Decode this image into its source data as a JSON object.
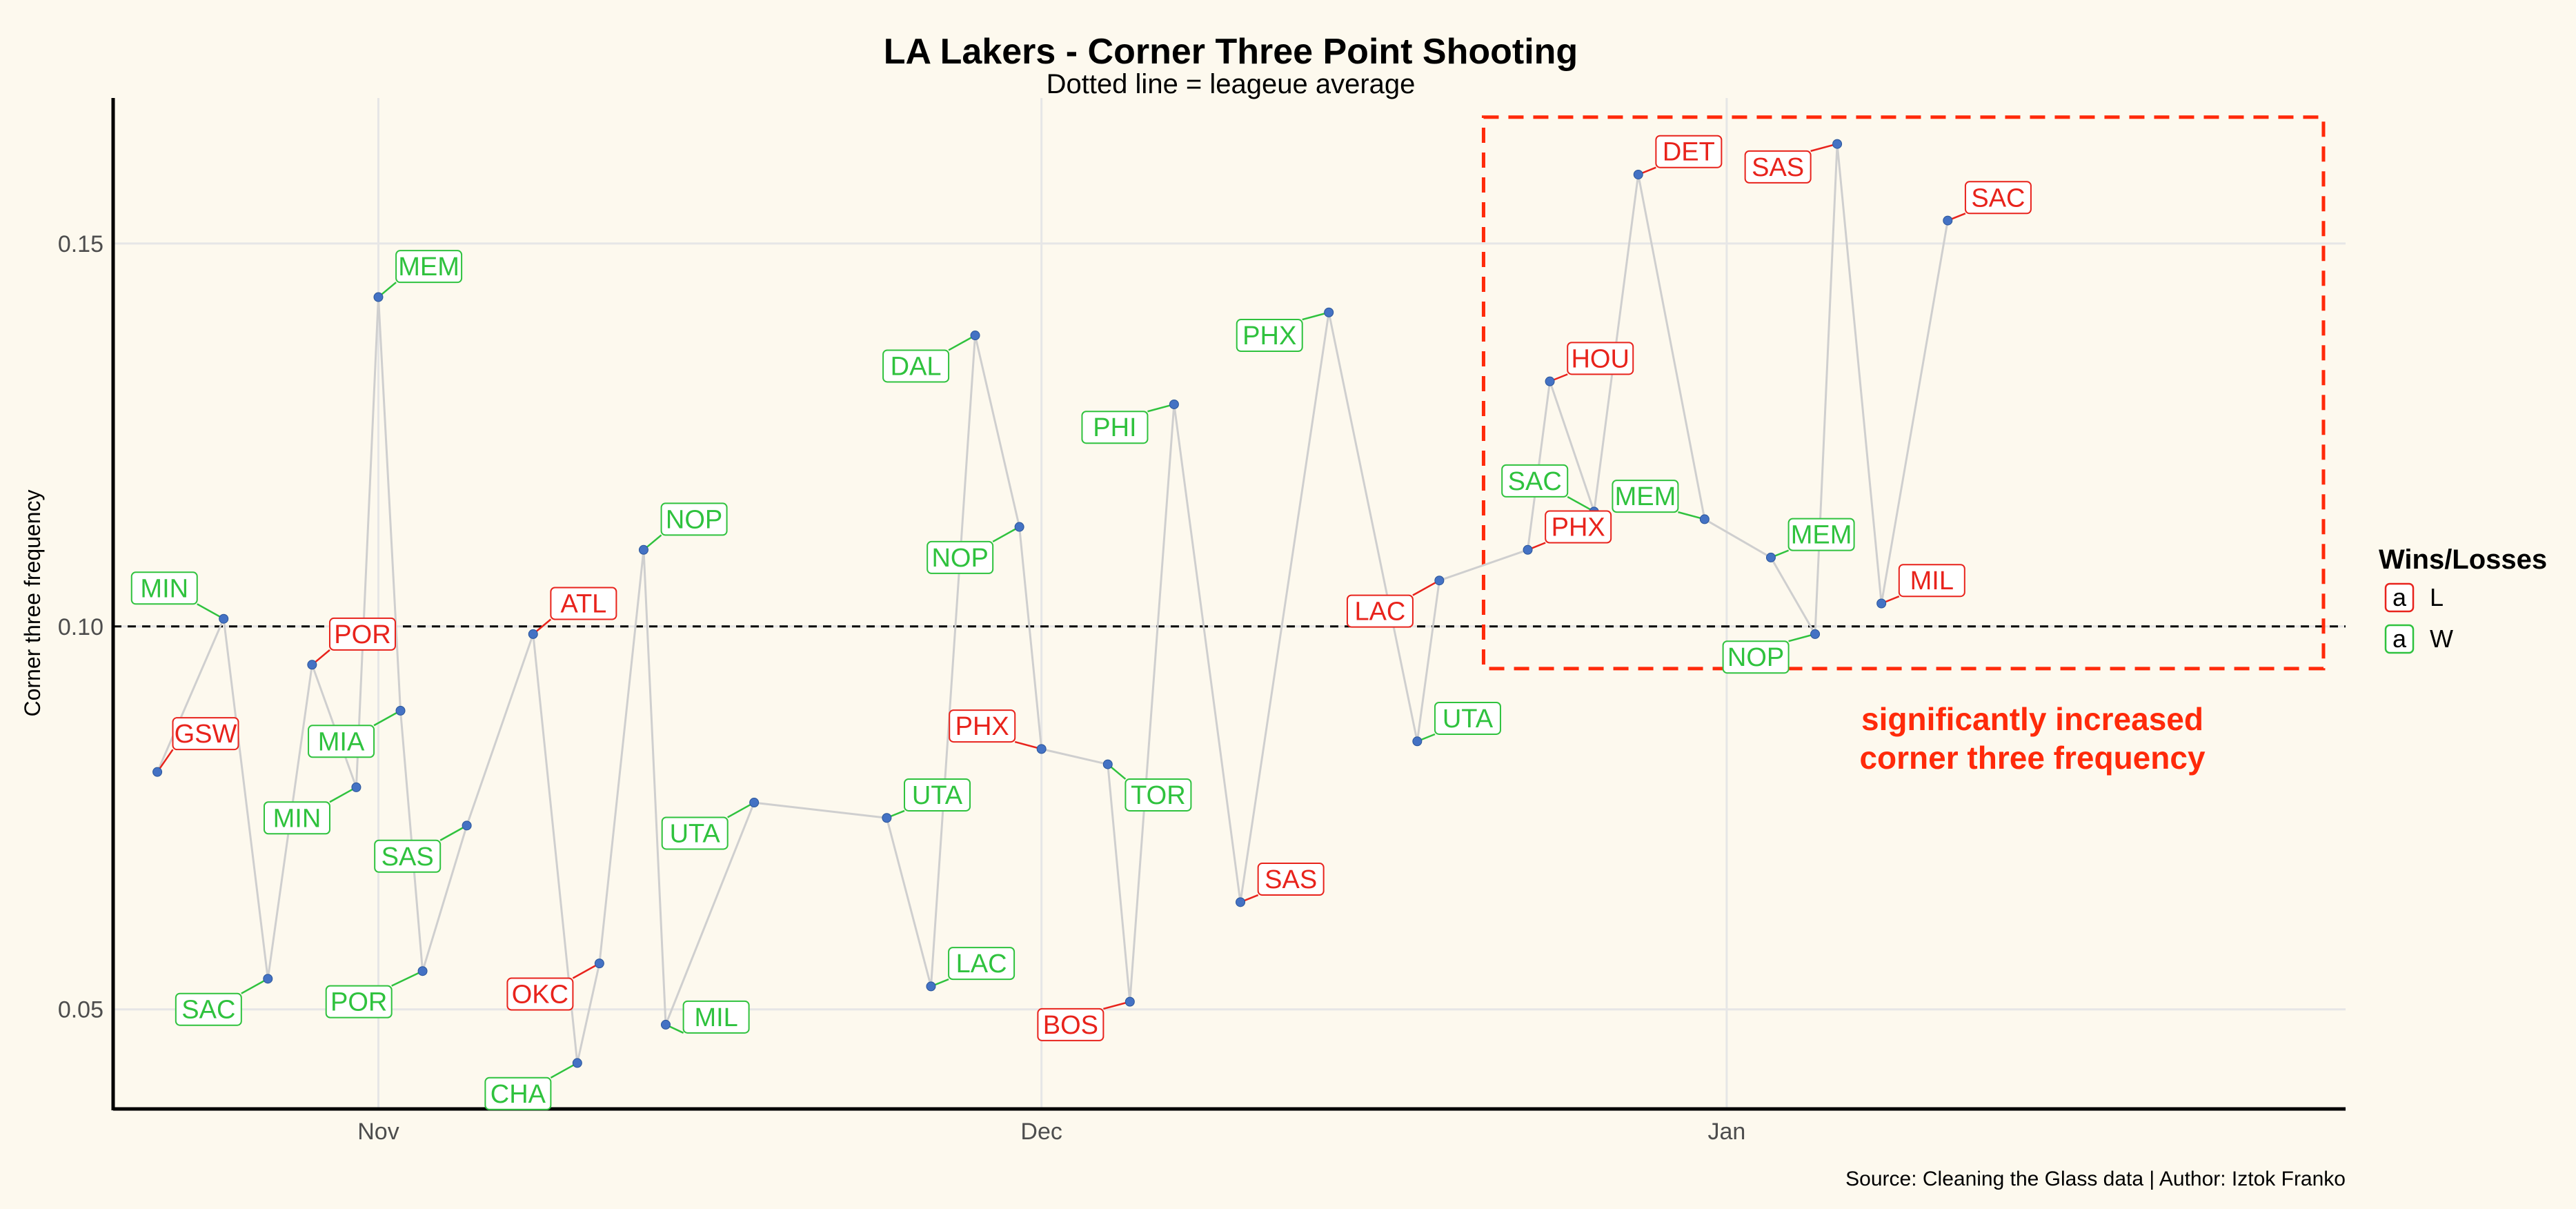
{
  "chart_data": {
    "type": "line",
    "title": "LA Lakers - Corner Three Point Shooting",
    "subtitle": "Dotted line = leageue average",
    "ylabel": "Corner three frequency",
    "xlabel": "",
    "caption": "Source: Cleaning the Glass data | Author: Iztok Franko",
    "x_axis": {
      "type": "date",
      "range": [
        "2019-10-20",
        "2020-01-29"
      ],
      "ticks": [
        {
          "date": "2019-11-01",
          "label": "Nov"
        },
        {
          "date": "2019-12-01",
          "label": "Dec"
        },
        {
          "date": "2020-01-01",
          "label": "Jan"
        }
      ]
    },
    "y_axis": {
      "range": [
        0.037,
        0.169
      ],
      "ticks": [
        {
          "value": 0.05,
          "label": "0.05"
        },
        {
          "value": 0.1,
          "label": "0.10"
        },
        {
          "value": 0.15,
          "label": "0.15"
        }
      ]
    },
    "grid": true,
    "reference_line": {
      "value": 0.1,
      "style": "dashed"
    },
    "legend": {
      "title": "Wins/Losses",
      "placement": "right",
      "glyph": "a",
      "entries": [
        {
          "key": "L",
          "label": "L",
          "color": "#e8231c"
        },
        {
          "key": "W",
          "label": "W",
          "color": "#2fc23e"
        }
      ]
    },
    "colors": {
      "L": "#e8231c",
      "W": "#2fc23e",
      "point": "#4472c4",
      "line": "#cfcfcf",
      "highlight": "#ff2a0a"
    },
    "highlight_box": {
      "x_range": [
        "2019-12-21",
        "2020-01-28"
      ],
      "y_range": [
        0.0945,
        0.1665
      ],
      "annotation": [
        "significantly increased",
        "corner three frequency"
      ]
    },
    "points": [
      {
        "date": "2019-10-22",
        "value": 0.081,
        "opponent": "GSW",
        "result": "L"
      },
      {
        "date": "2019-10-25",
        "value": 0.101,
        "opponent": "MIN",
        "result": "W"
      },
      {
        "date": "2019-10-27",
        "value": 0.054,
        "opponent": "SAC",
        "result": "W"
      },
      {
        "date": "2019-10-29",
        "value": 0.095,
        "opponent": "POR",
        "result": "L"
      },
      {
        "date": "2019-10-31",
        "value": 0.079,
        "opponent": "MIN",
        "result": "W"
      },
      {
        "date": "2019-11-01",
        "value": 0.143,
        "opponent": "MEM",
        "result": "W"
      },
      {
        "date": "2019-11-02",
        "value": 0.089,
        "opponent": "MIA",
        "result": "W"
      },
      {
        "date": "2019-11-03",
        "value": 0.055,
        "opponent": "POR",
        "result": "W"
      },
      {
        "date": "2019-11-05",
        "value": 0.074,
        "opponent": "SAS",
        "result": "W"
      },
      {
        "date": "2019-11-08",
        "value": 0.099,
        "opponent": "ATL",
        "result": "L"
      },
      {
        "date": "2019-11-10",
        "value": 0.043,
        "opponent": "CHA",
        "result": "W"
      },
      {
        "date": "2019-11-11",
        "value": 0.056,
        "opponent": "OKC",
        "result": "L"
      },
      {
        "date": "2019-11-13",
        "value": 0.11,
        "opponent": "NOP",
        "result": "W"
      },
      {
        "date": "2019-11-14",
        "value": 0.048,
        "opponent": "MIL",
        "result": "W"
      },
      {
        "date": "2019-11-18",
        "value": 0.077,
        "opponent": "UTA",
        "result": "W"
      },
      {
        "date": "2019-11-24",
        "value": 0.075,
        "opponent": "UTA",
        "result": "W"
      },
      {
        "date": "2019-11-26",
        "value": 0.053,
        "opponent": "LAC",
        "result": "W"
      },
      {
        "date": "2019-11-28",
        "value": 0.138,
        "opponent": "DAL",
        "result": "W"
      },
      {
        "date": "2019-11-30",
        "value": 0.113,
        "opponent": "NOP",
        "result": "W"
      },
      {
        "date": "2019-12-01",
        "value": 0.084,
        "opponent": "PHX",
        "result": "L"
      },
      {
        "date": "2019-12-04",
        "value": 0.082,
        "opponent": "TOR",
        "result": "W"
      },
      {
        "date": "2019-12-05",
        "value": 0.051,
        "opponent": "BOS",
        "result": "L"
      },
      {
        "date": "2019-12-07",
        "value": 0.129,
        "opponent": "PHI",
        "result": "W"
      },
      {
        "date": "2019-12-10",
        "value": 0.064,
        "opponent": "SAS",
        "result": "L"
      },
      {
        "date": "2019-12-14",
        "value": 0.141,
        "opponent": "PHX",
        "result": "W"
      },
      {
        "date": "2019-12-18",
        "value": 0.085,
        "opponent": "UTA",
        "result": "W"
      },
      {
        "date": "2019-12-19",
        "value": 0.106,
        "opponent": "LAC",
        "result": "L"
      },
      {
        "date": "2019-12-23",
        "value": 0.11,
        "opponent": "PHX",
        "result": "L"
      },
      {
        "date": "2019-12-24",
        "value": 0.132,
        "opponent": "HOU",
        "result": "L"
      },
      {
        "date": "2019-12-26",
        "value": 0.115,
        "opponent": "SAC",
        "result": "W"
      },
      {
        "date": "2019-12-28",
        "value": 0.159,
        "opponent": "DET",
        "result": "L"
      },
      {
        "date": "2019-12-31",
        "value": 0.114,
        "opponent": "MEM",
        "result": "W"
      },
      {
        "date": "2020-01-03",
        "value": 0.109,
        "opponent": "MEM",
        "result": "W"
      },
      {
        "date": "2020-01-05",
        "value": 0.099,
        "opponent": "NOP",
        "result": "W"
      },
      {
        "date": "2020-01-06",
        "value": 0.163,
        "opponent": "SAS",
        "result": "L"
      },
      {
        "date": "2020-01-08",
        "value": 0.103,
        "opponent": "MIL",
        "result": "L"
      },
      {
        "date": "2020-01-11",
        "value": 0.153,
        "opponent": "SAC",
        "result": "L"
      }
    ]
  }
}
